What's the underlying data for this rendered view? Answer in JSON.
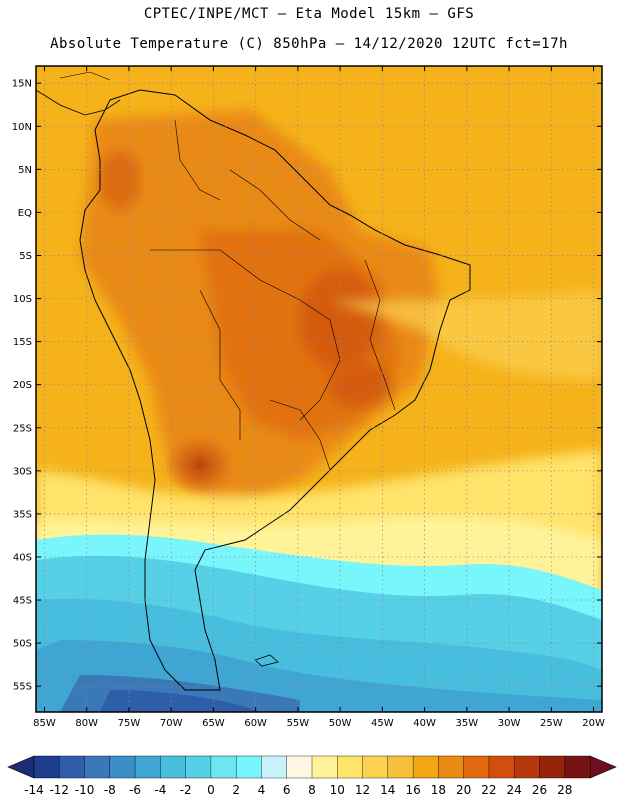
{
  "header": {
    "line1": "CPTEC/INPE/MCT –  Eta Model 15km – GFS",
    "line2": "Absolute Temperature (C) 850hPa – 14/12/2020 12UTC fct=17h"
  },
  "map": {
    "lon_range": [
      -86,
      -19
    ],
    "lat_range": [
      -58,
      17
    ],
    "lat_ticks": [
      "15N",
      "10N",
      "5N",
      "EQ",
      "5S",
      "10S",
      "15S",
      "20S",
      "25S",
      "30S",
      "35S",
      "40S",
      "45S",
      "50S",
      "55S"
    ],
    "lat_tick_values": [
      15,
      10,
      5,
      0,
      -5,
      -10,
      -15,
      -20,
      -25,
      -30,
      -35,
      -40,
      -45,
      -50,
      -55
    ],
    "lon_ticks": [
      "85W",
      "80W",
      "75W",
      "70W",
      "65W",
      "60W",
      "55W",
      "50W",
      "45W",
      "40W",
      "35W",
      "30W",
      "25W",
      "20W"
    ],
    "lon_tick_values": [
      -85,
      -80,
      -75,
      -70,
      -65,
      -60,
      -55,
      -50,
      -45,
      -40,
      -35,
      -30,
      -25,
      -20
    ],
    "grid": true,
    "field": "temperature_850hPa"
  },
  "colorbar": {
    "labels": [
      "-14",
      "-12",
      "-10",
      "-8",
      "-6",
      "-4",
      "-2",
      "0",
      "2",
      "4",
      "6",
      "8",
      "10",
      "12",
      "14",
      "16",
      "18",
      "20",
      "22",
      "24",
      "26",
      "28"
    ],
    "colors": [
      "#1f3d8f",
      "#2f5ea8",
      "#3a78b8",
      "#3b8fc8",
      "#3fa6d4",
      "#47bede",
      "#56d0e6",
      "#6ee6f0",
      "#78f6fb",
      "#c9f3fa",
      "#fff7e4",
      "#fff39a",
      "#ffe36a",
      "#fcd251",
      "#f5c03c",
      "#f1a612",
      "#ea8a12",
      "#df6a10",
      "#d24e0e",
      "#b7380c",
      "#94230b",
      "#761414"
    ],
    "under_color": "#1c2c78",
    "over_color": "#6e0f1f"
  }
}
